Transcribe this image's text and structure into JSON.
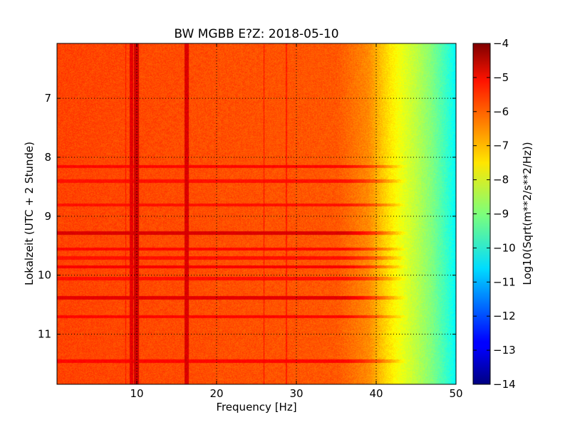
{
  "chart_data": {
    "type": "heatmap",
    "title": "BW MGBB E?Z: 2018-05-10",
    "xlabel": "Frequency [Hz]",
    "ylabel": "Lokalzeit (UTC + 2 Stunde)",
    "xlim": [
      0,
      50
    ],
    "ylim": [
      11.85,
      6.07
    ],
    "xticks": [
      10,
      20,
      30,
      40,
      50
    ],
    "xtick_labels": [
      "10",
      "20",
      "30",
      "40",
      "50"
    ],
    "yticks": [
      7,
      8,
      9,
      10,
      11
    ],
    "ytick_labels": [
      "7",
      "8",
      "9",
      "10",
      "11"
    ],
    "grid": true,
    "colormap": "jet",
    "colorbar": {
      "label": "Log10(Sqrt(m**2/s**2/Hz))",
      "range": [
        -14,
        -4
      ],
      "ticks": [
        -4,
        -5,
        -6,
        -7,
        -8,
        -9,
        -10,
        -11,
        -12,
        -13,
        -14
      ],
      "tick_labels": [
        "−4",
        "−5",
        "−6",
        "−7",
        "−8",
        "−9",
        "−10",
        "−11",
        "−12",
        "−13",
        "−14"
      ]
    },
    "baseline_profile": [
      {
        "freq": 0,
        "value": -5.9
      },
      {
        "freq": 35,
        "value": -6.1
      },
      {
        "freq": 39,
        "value": -6.6
      },
      {
        "freq": 41,
        "value": -7.3
      },
      {
        "freq": 43,
        "value": -7.9
      },
      {
        "freq": 45,
        "value": -8.4
      },
      {
        "freq": 47,
        "value": -9.0
      },
      {
        "freq": 49,
        "value": -9.8
      },
      {
        "freq": 50,
        "value": -10.3
      }
    ],
    "vertical_lines": [
      {
        "freq": 9.3,
        "width": 0.5,
        "value": -5.0
      },
      {
        "freq": 9.9,
        "width": 0.6,
        "value": -4.8
      },
      {
        "freq": 16.2,
        "width": 0.5,
        "value": -4.9
      },
      {
        "freq": 25.9,
        "width": 0.15,
        "value": -5.3
      },
      {
        "freq": 8.6,
        "width": 0.12,
        "value": -5.4
      },
      {
        "freq": 28.7,
        "width": 0.12,
        "value": -5.5
      }
    ],
    "horizontal_bands": [
      {
        "time": 8.15,
        "value": -5.3
      },
      {
        "time": 8.4,
        "value": -5.4
      },
      {
        "time": 8.8,
        "value": -5.4
      },
      {
        "time": 9.28,
        "value": -4.9
      },
      {
        "time": 9.55,
        "value": -5.3
      },
      {
        "time": 9.7,
        "value": -5.4
      },
      {
        "time": 9.85,
        "value": -5.2
      },
      {
        "time": 10.05,
        "value": -5.4
      },
      {
        "time": 10.38,
        "value": -5.0
      },
      {
        "time": 10.7,
        "value": -5.3
      },
      {
        "time": 11.45,
        "value": -5.3
      }
    ]
  }
}
